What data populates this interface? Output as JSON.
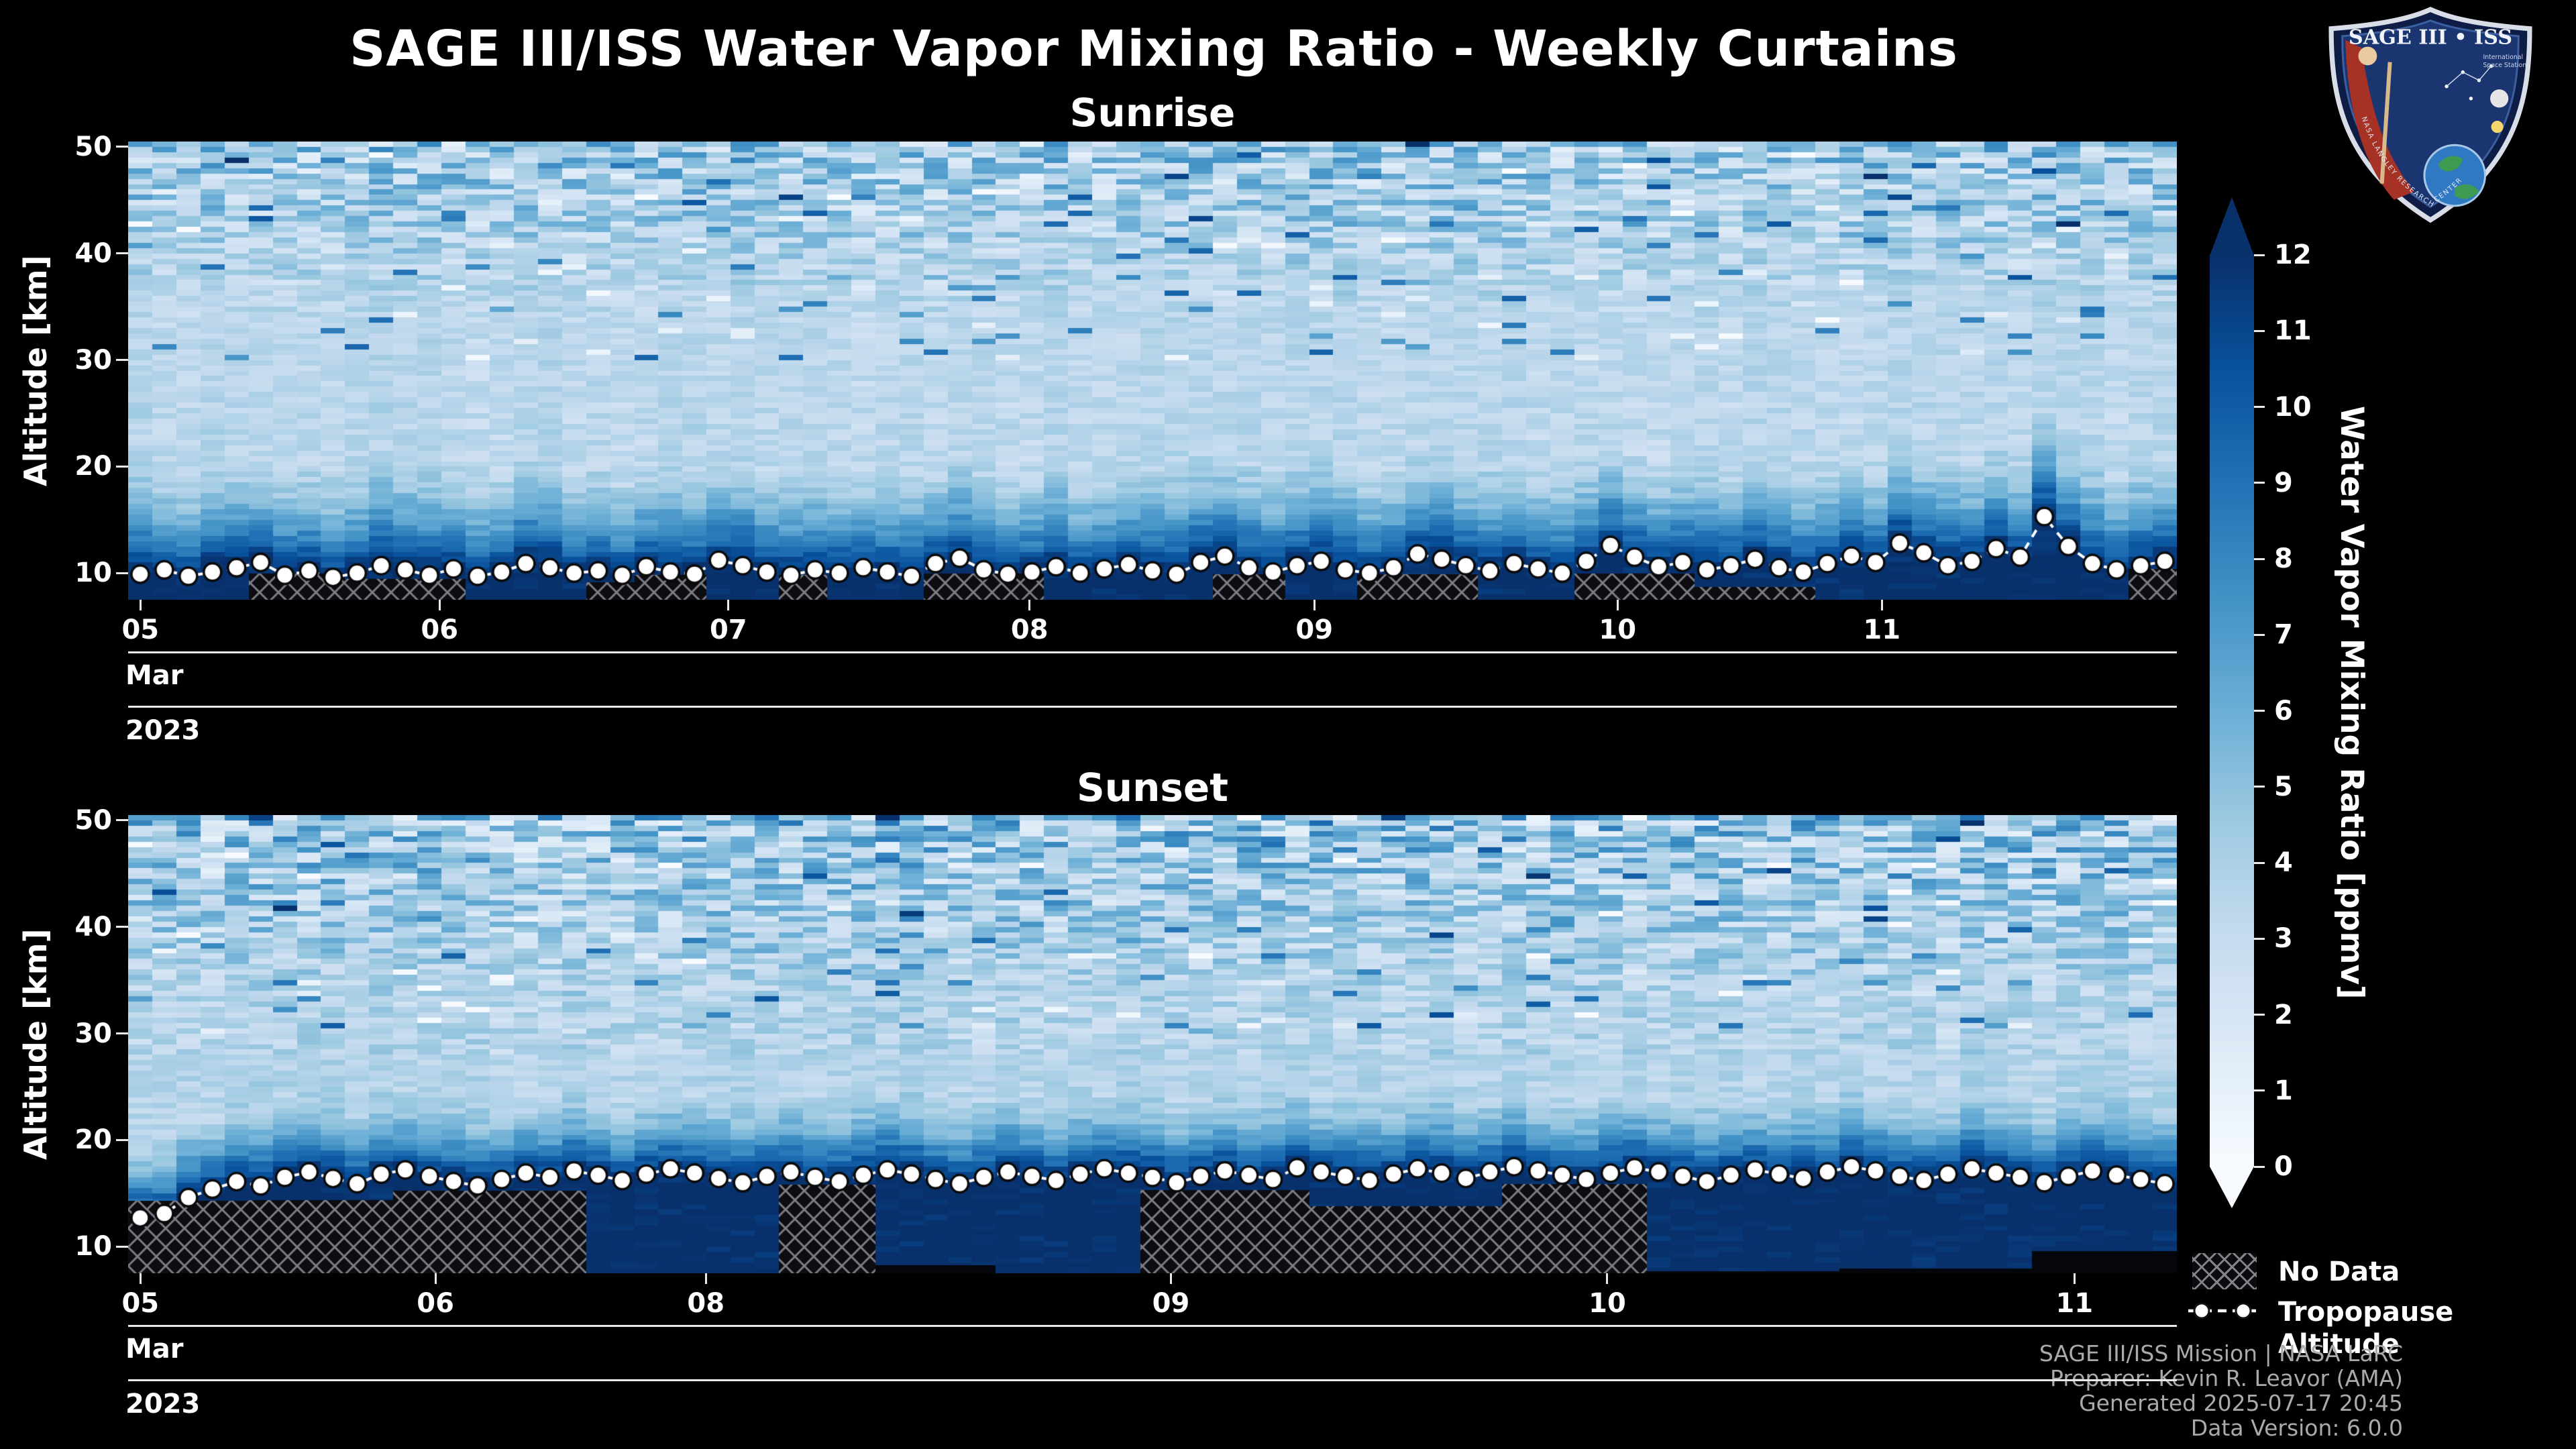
{
  "header": {
    "title": "SAGE III/ISS Water Vapor Mixing Ratio - Weekly Curtains"
  },
  "logo": {
    "title": "SAGE III • ISS",
    "subtitle_line1": "International",
    "subtitle_line2": "Space Station",
    "border_text": "NASA LANGLEY RESEARCH CENTER"
  },
  "colorbar": {
    "label": "Water Vapor Mixing Ratio [ppmv]",
    "ticks": [
      12,
      11,
      10,
      9,
      8,
      7,
      6,
      5,
      4,
      3,
      2,
      1,
      0
    ],
    "vmin": 0,
    "vmax": 12,
    "colormap": "Blues",
    "extend": "both"
  },
  "legend": {
    "no_data": "No Data",
    "tropopause": "Tropopause Altitude"
  },
  "footer": {
    "lines": [
      "SAGE III/ISS Mission | NASA LaRC",
      "Preparer: Kevin R. Leavor (AMA)",
      "Generated 2025-07-17 20:45",
      "Data Version: 6.0.0"
    ]
  },
  "chart_data": [
    {
      "type": "heatmap",
      "title": "Sunrise",
      "x": {
        "tick_labels": [
          "05",
          "06",
          "07",
          "08",
          "09",
          "10",
          "11"
        ],
        "tick_positions": [
          0.006,
          0.152,
          0.293,
          0.44,
          0.579,
          0.727,
          0.856
        ],
        "month": "Mar",
        "year": "2023"
      },
      "y": {
        "label": "Altitude [km]",
        "ticks": [
          50,
          40,
          30,
          20,
          10
        ],
        "range": [
          7.5,
          50.5
        ]
      },
      "value": {
        "label": "Water Vapor Mixing Ratio [ppmv]",
        "range": [
          0,
          12
        ],
        "colormap": "Blues"
      },
      "overlays": {
        "no_data_regions": "hatched",
        "tropopause_altitude_km": [
          9.9,
          10.3,
          9.7,
          10.1,
          10.5,
          11.0,
          9.8,
          10.2,
          9.6,
          10.0,
          10.7,
          10.3,
          9.8,
          10.4,
          9.7,
          10.1,
          10.9,
          10.5,
          10.0,
          10.2,
          9.8,
          10.6,
          10.1,
          9.9,
          11.2,
          10.7,
          10.1,
          9.8,
          10.3,
          10.0,
          10.5,
          10.1,
          9.7,
          10.9,
          11.4,
          10.3,
          9.9,
          10.1,
          10.6,
          10.0,
          10.4,
          10.8,
          10.2,
          9.9,
          11.0,
          11.6,
          10.5,
          10.1,
          10.7,
          11.1,
          10.3,
          10.0,
          10.5,
          11.8,
          11.3,
          10.7,
          10.2,
          10.9,
          10.4,
          10.0,
          11.1,
          12.6,
          11.5,
          10.6,
          11.0,
          10.3,
          10.7,
          11.3,
          10.5,
          10.1,
          10.9,
          11.6,
          11.0,
          12.8,
          11.9,
          10.7,
          11.1,
          12.3,
          11.5,
          15.3,
          12.5,
          10.9,
          10.3,
          10.7,
          11.1
        ]
      }
    },
    {
      "type": "heatmap",
      "title": "Sunset",
      "x": {
        "tick_labels": [
          "05",
          "06",
          "08",
          "09",
          "10",
          "11"
        ],
        "tick_positions": [
          0.006,
          0.15,
          0.282,
          0.509,
          0.722,
          0.95
        ],
        "month": "Mar",
        "year": "2023"
      },
      "y": {
        "label": "Altitude [km]",
        "ticks": [
          50,
          40,
          30,
          20,
          10
        ],
        "range": [
          7.5,
          50.5
        ]
      },
      "value": {
        "label": "Water Vapor Mixing Ratio [ppmv]",
        "range": [
          0,
          12
        ],
        "colormap": "Blues"
      },
      "overlays": {
        "no_data_regions": "hatched",
        "tropopause_altitude_km": [
          12.7,
          13.1,
          14.6,
          15.4,
          16.1,
          15.7,
          16.5,
          17.0,
          16.4,
          15.9,
          16.8,
          17.2,
          16.6,
          16.1,
          15.7,
          16.3,
          16.9,
          16.5,
          17.1,
          16.7,
          16.2,
          16.8,
          17.3,
          16.9,
          16.4,
          16.0,
          16.6,
          17.0,
          16.5,
          16.1,
          16.7,
          17.2,
          16.8,
          16.3,
          15.9,
          16.5,
          17.0,
          16.6,
          16.2,
          16.8,
          17.3,
          16.9,
          16.5,
          16.0,
          16.6,
          17.1,
          16.7,
          16.3,
          17.4,
          17.0,
          16.6,
          16.2,
          16.8,
          17.3,
          16.9,
          16.4,
          17.0,
          17.5,
          17.1,
          16.7,
          16.3,
          16.9,
          17.4,
          17.0,
          16.6,
          16.1,
          16.7,
          17.2,
          16.8,
          16.4,
          17.0,
          17.5,
          17.1,
          16.6,
          16.2,
          16.8,
          17.3,
          16.9,
          16.5,
          16.0,
          16.6,
          17.1,
          16.7,
          16.3,
          15.9
        ]
      }
    }
  ]
}
